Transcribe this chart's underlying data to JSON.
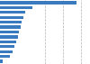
{
  "values": [
    8.5,
    3.6,
    2.8,
    2.6,
    2.4,
    2.25,
    2.1,
    1.95,
    1.8,
    1.6,
    1.4,
    1.1,
    0.3
  ],
  "bar_color": "#3a7bbf",
  "background_color": "#ffffff",
  "grid_color": "#b0b0b0",
  "xlim": [
    0,
    10
  ],
  "grid_lines": [
    5,
    7,
    9
  ]
}
